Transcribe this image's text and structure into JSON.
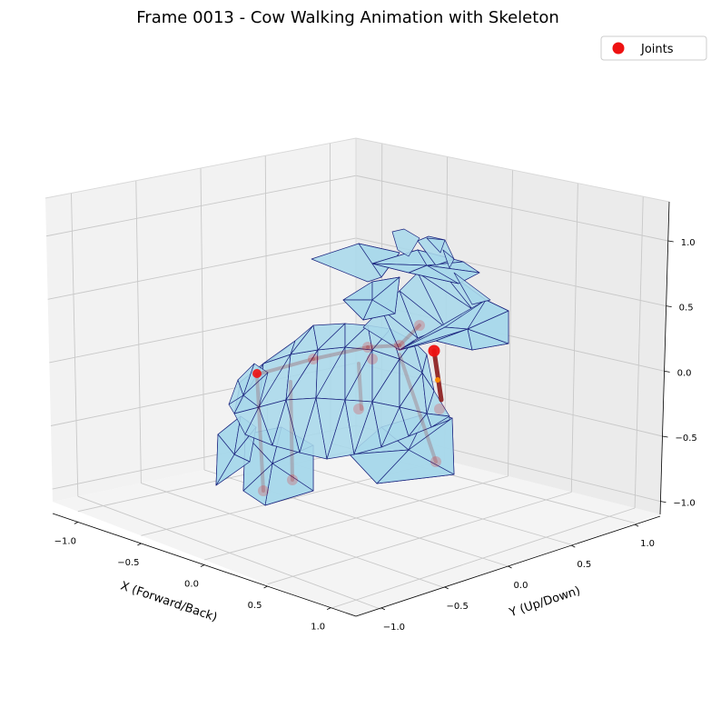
{
  "chart_data": {
    "type": "3d-mesh",
    "title": "Frame 0013 - Cow Walking Animation with Skeleton",
    "xlabel": "X (Forward/Back)",
    "ylabel": "Y (Up/Down)",
    "zlabel": "",
    "x_ticks": [
      "−1.0",
      "−0.5",
      "0.0",
      "0.5",
      "1.0"
    ],
    "y_ticks": [
      "−1.0",
      "−0.5",
      "0.0",
      "0.5",
      "1.0"
    ],
    "z_ticks": [
      "−1.0",
      "−0.5",
      "0.0",
      "0.5",
      "1.0"
    ],
    "xlim": [
      -1.2,
      1.2
    ],
    "ylim": [
      -1.2,
      1.2
    ],
    "zlim": [
      -1.1,
      1.3
    ],
    "grid": true,
    "legend": {
      "position": "top-right",
      "entries": [
        {
          "label": "Joints",
          "marker": "circle",
          "color": "#ee1111"
        }
      ]
    },
    "colors": {
      "mesh_face": "#a8d8ea",
      "mesh_edge": "#1a237e",
      "joint": "#ee1111",
      "bone": "#8b1a1a",
      "joint_small": "#ff8c00"
    }
  }
}
